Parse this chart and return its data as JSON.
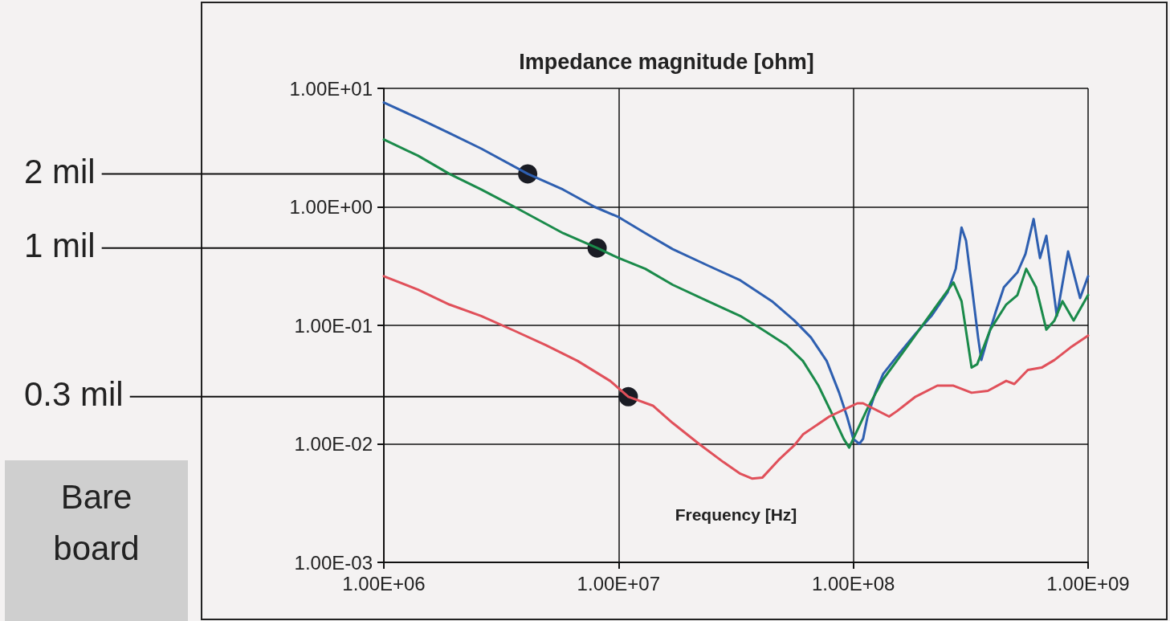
{
  "chart_data": {
    "type": "line",
    "title": "Impedance magnitude [ohm]",
    "xlabel": "Frequency [Hz]",
    "log": "xy",
    "grid": true,
    "marker": "none",
    "line_style": "solid",
    "xlim": [
      1000000,
      1000000000
    ],
    "xticks": [
      {
        "value": 1000000,
        "label": "1.00E+06"
      },
      {
        "value": 10000000,
        "label": "1.00E+07"
      },
      {
        "value": 100000000,
        "label": "1.00E+08"
      },
      {
        "value": 1000000000,
        "label": "1.00E+09"
      }
    ],
    "ylim": [
      0.001,
      10
    ],
    "yticks": [
      {
        "value": 0.001,
        "label": "1.00E-03"
      },
      {
        "value": 0.01,
        "label": "1.00E-02"
      },
      {
        "value": 0.1,
        "label": "1.00E-01"
      },
      {
        "value": 1,
        "label": "1.00E+00"
      },
      {
        "value": 10,
        "label": "1.00E+01"
      }
    ],
    "series": [
      {
        "color": "#2e5fb0",
        "x": [
          1000000.0,
          1400000.0,
          1900000.0,
          2600000.0,
          4100000.0,
          5800000.0,
          7900000.0,
          10000000.0,
          13000000.0,
          17000000.0,
          24000000.0,
          33000000.0,
          45000000.0,
          56000000.0,
          66000000.0,
          77000000.0,
          87000000.0,
          94000000.0,
          100000000.0,
          106000000.0,
          110000000.0,
          115000000.0,
          124000000.0,
          134000000.0,
          157000000.0,
          184000000.0,
          215000000.0,
          252000000.0,
          273000000.0,
          289000000.0,
          302000000.0,
          319000000.0,
          340000000.0,
          351000000.0,
          374000000.0,
          404000000.0,
          438000000.0,
          500000000.0,
          541000000.0,
          586000000.0,
          624000000.0,
          664000000.0,
          736000000.0,
          822000000.0,
          925000000.0,
          1000000000.0
        ],
        "values": [
          7.6,
          5.6,
          4.2,
          3.1,
          1.9,
          1.4,
          1.0,
          0.82,
          0.6,
          0.44,
          0.32,
          0.24,
          0.16,
          0.11,
          0.079,
          0.05,
          0.027,
          0.017,
          0.011,
          0.01,
          0.011,
          0.017,
          0.027,
          0.039,
          0.058,
          0.085,
          0.12,
          0.19,
          0.3,
          0.67,
          0.52,
          0.22,
          0.079,
          0.051,
          0.079,
          0.13,
          0.21,
          0.28,
          0.4,
          0.79,
          0.37,
          0.57,
          0.12,
          0.42,
          0.17,
          0.26
        ]
      },
      {
        "color": "#1a8a4a",
        "x": [
          1000000.0,
          1400000.0,
          1900000.0,
          2600000.0,
          3600000.0,
          5800000.0,
          8100000.0,
          10000000.0,
          13000000.0,
          17000000.0,
          24000000.0,
          33000000.0,
          41000000.0,
          52000000.0,
          61000000.0,
          71000000.0,
          80000000.0,
          91000000.0,
          96000000.0,
          115000000.0,
          134000000.0,
          174000000.0,
          228000000.0,
          267000000.0,
          289000000.0,
          319000000.0,
          337000000.0,
          383000000.0,
          448000000.0,
          500000000.0,
          545000000.0,
          600000000.0,
          664000000.0,
          719000000.0,
          778000000.0,
          868000000.0,
          1000000000.0
        ],
        "values": [
          3.7,
          2.7,
          1.9,
          1.4,
          1.0,
          0.6,
          0.45,
          0.37,
          0.3,
          0.22,
          0.16,
          0.12,
          0.092,
          0.068,
          0.05,
          0.031,
          0.019,
          0.011,
          0.0093,
          0.02,
          0.035,
          0.071,
          0.15,
          0.23,
          0.16,
          0.044,
          0.047,
          0.092,
          0.15,
          0.18,
          0.3,
          0.21,
          0.092,
          0.11,
          0.16,
          0.11,
          0.18
        ]
      },
      {
        "color": "#e0505a",
        "x": [
          1000000.0,
          1400000.0,
          1900000.0,
          2600000.0,
          3600000.0,
          4900000.0,
          6700000.0,
          9200000.0,
          11000000.0,
          14000000.0,
          17000000.0,
          22000000.0,
          28000000.0,
          33000000.0,
          37000000.0,
          41000000.0,
          48000000.0,
          56000000.0,
          61000000.0,
          79000000.0,
          104000000.0,
          110000000.0,
          142000000.0,
          154000000.0,
          184000000.0,
          228000000.0,
          267000000.0,
          319000000.0,
          374000000.0,
          448000000.0,
          485000000.0,
          554000000.0,
          634000000.0,
          719000000.0,
          841000000.0,
          1000000000.0
        ],
        "values": [
          0.26,
          0.2,
          0.15,
          0.12,
          0.09,
          0.068,
          0.05,
          0.034,
          0.025,
          0.021,
          0.015,
          0.01,
          0.007,
          0.0056,
          0.0051,
          0.0052,
          0.0073,
          0.0097,
          0.012,
          0.017,
          0.022,
          0.022,
          0.017,
          0.019,
          0.025,
          0.031,
          0.031,
          0.027,
          0.028,
          0.034,
          0.032,
          0.042,
          0.044,
          0.051,
          0.065,
          0.082
        ]
      }
    ],
    "annotations": [
      {
        "text": "2 mil",
        "x": 4100000.0,
        "y": 1.9
      },
      {
        "text": "1 mil",
        "x": 8100000.0,
        "y": 0.45
      },
      {
        "text": "0.3 mil",
        "x": 11000000.0,
        "y": 0.025
      },
      "Bare board"
    ]
  }
}
